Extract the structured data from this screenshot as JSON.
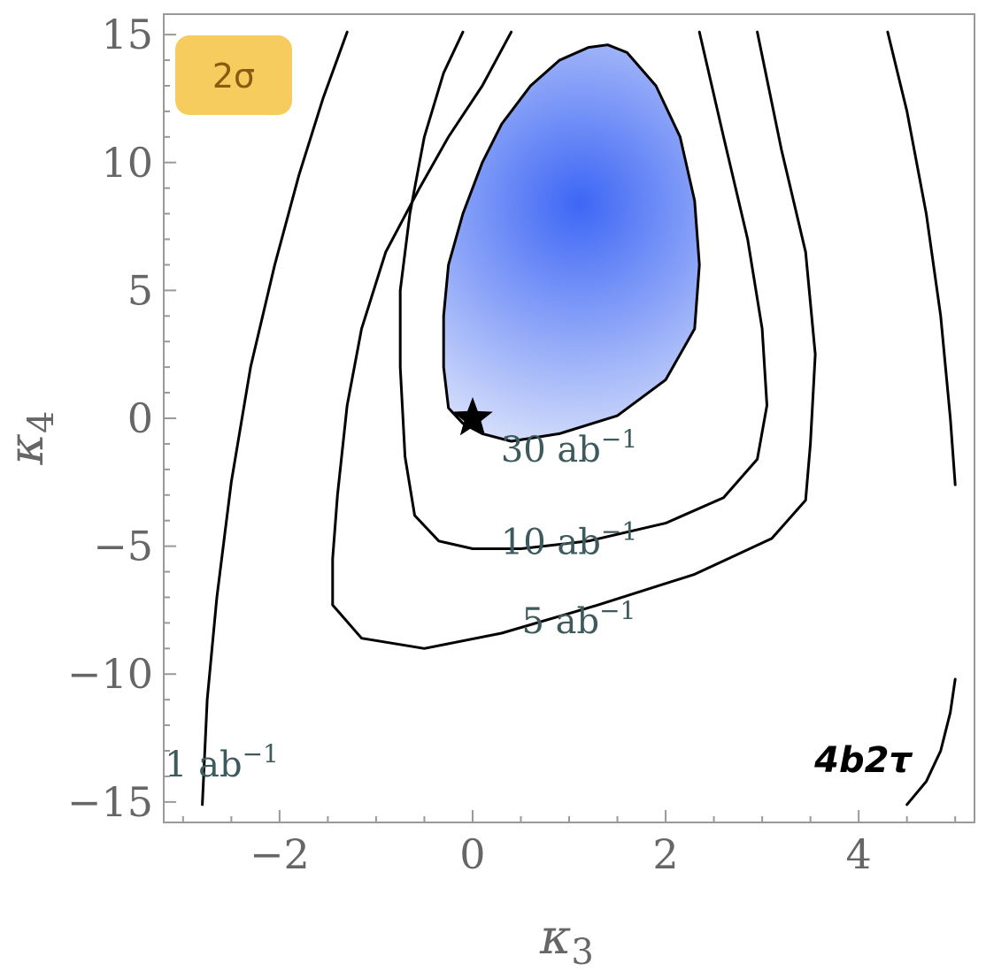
{
  "chart_data": {
    "type": "contour",
    "xlabel_base": "κ",
    "xlabel_sub": "3",
    "ylabel_base": "κ",
    "ylabel_sub": "4",
    "xlim": [
      -3.2,
      5.2
    ],
    "ylim": [
      -15.8,
      15.8
    ],
    "x_ticks_major": [
      -2,
      0,
      2,
      4
    ],
    "x_tick_labels": [
      "−2",
      "0",
      "2",
      "4"
    ],
    "y_ticks_major": [
      -15,
      -10,
      -5,
      0,
      5,
      10,
      15
    ],
    "y_tick_labels": [
      "−15",
      "−10",
      "−5",
      "0",
      "5",
      "10",
      "15"
    ],
    "grid": false,
    "significance_badge": "2σ",
    "channel_label": "4b2τ",
    "sm_point": {
      "x": 0,
      "y": 0,
      "marker": "star"
    },
    "fill_region_color": "#3d66f5",
    "contours": [
      {
        "label_base": "30 ab",
        "label_exp": "−1",
        "label_pos": {
          "x": 1.0,
          "y": -1.7
        },
        "points": [
          [
            -0.25,
            0.4
          ],
          [
            -0.3,
            2
          ],
          [
            -0.3,
            4
          ],
          [
            -0.25,
            6
          ],
          [
            -0.1,
            8
          ],
          [
            0.1,
            10
          ],
          [
            0.3,
            11.5
          ],
          [
            0.6,
            13
          ],
          [
            0.9,
            14
          ],
          [
            1.2,
            14.5
          ],
          [
            1.4,
            14.6
          ],
          [
            1.6,
            14.3
          ],
          [
            1.9,
            13
          ],
          [
            2.15,
            11
          ],
          [
            2.3,
            8.5
          ],
          [
            2.35,
            6
          ],
          [
            2.3,
            3.5
          ],
          [
            2.0,
            1.5
          ],
          [
            1.5,
            0.1
          ],
          [
            0.9,
            -0.6
          ],
          [
            0.4,
            -0.9
          ],
          [
            0.1,
            -0.6
          ],
          [
            -0.1,
            -0.2
          ],
          [
            -0.25,
            0.4
          ]
        ],
        "filled": true
      },
      {
        "label_base": "10 ab",
        "label_exp": "−1",
        "label_pos": {
          "x": 1.0,
          "y": -5.3
        },
        "points": [
          [
            -0.1,
            15.1
          ],
          [
            -0.3,
            13.5
          ],
          [
            -0.5,
            11
          ],
          [
            -0.65,
            8
          ],
          [
            -0.75,
            5
          ],
          [
            -0.75,
            2
          ],
          [
            -0.7,
            -1.5
          ],
          [
            -0.6,
            -3.8
          ],
          [
            -0.35,
            -4.8
          ],
          [
            0.0,
            -5.1
          ],
          [
            0.5,
            -5.1
          ],
          [
            1.2,
            -4.8
          ],
          [
            2.0,
            -4.1
          ],
          [
            2.6,
            -3.1
          ],
          [
            2.95,
            -1.6
          ],
          [
            3.05,
            0.5
          ],
          [
            3.0,
            3.5
          ],
          [
            2.85,
            7
          ],
          [
            2.6,
            11
          ],
          [
            2.35,
            15.1
          ]
        ]
      },
      {
        "label_base": "5 ab",
        "label_exp": "−1",
        "label_pos": {
          "x": 1.1,
          "y": -8.4
        },
        "points": [
          [
            0.4,
            15.1
          ],
          [
            0.1,
            13
          ],
          [
            -0.25,
            11
          ],
          [
            -0.55,
            9
          ],
          [
            -0.9,
            6.5
          ],
          [
            -1.15,
            3.5
          ],
          [
            -1.3,
            0.5
          ],
          [
            -1.4,
            -3
          ],
          [
            -1.45,
            -5.5
          ],
          [
            -1.45,
            -7.3
          ],
          [
            -1.15,
            -8.6
          ],
          [
            -0.5,
            -9.0
          ],
          [
            0.3,
            -8.4
          ],
          [
            1.3,
            -7.3
          ],
          [
            2.3,
            -6.1
          ],
          [
            3.1,
            -4.7
          ],
          [
            3.45,
            -3.2
          ],
          [
            3.5,
            -1
          ],
          [
            3.55,
            2.5
          ],
          [
            3.45,
            6.5
          ],
          [
            3.2,
            10.5
          ],
          [
            2.95,
            15.1
          ]
        ]
      },
      {
        "label_base": "1 ab",
        "label_exp": "−1",
        "label_pos": {
          "x": -2.6,
          "y": -14.0
        },
        "points": [
          [
            -1.3,
            15.1
          ],
          [
            -1.55,
            12.5
          ],
          [
            -1.8,
            9.5
          ],
          [
            -2.05,
            6
          ],
          [
            -2.3,
            2
          ],
          [
            -2.5,
            -2.5
          ],
          [
            -2.65,
            -7
          ],
          [
            -2.75,
            -11
          ],
          [
            -2.8,
            -15.1
          ]
        ]
      },
      {
        "points": [
          [
            4.3,
            15.1
          ],
          [
            4.5,
            12
          ],
          [
            4.7,
            8
          ],
          [
            4.85,
            4
          ],
          [
            4.95,
            0
          ],
          [
            5.0,
            -2.6
          ]
        ]
      },
      {
        "points": [
          [
            4.5,
            -15.1
          ],
          [
            4.7,
            -14.2
          ],
          [
            4.85,
            -13
          ],
          [
            4.95,
            -11.5
          ],
          [
            5.0,
            -10.2
          ]
        ]
      }
    ]
  }
}
